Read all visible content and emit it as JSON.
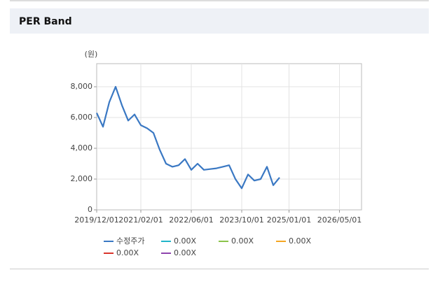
{
  "header": {
    "title": "PER Band"
  },
  "chart_data": {
    "type": "line",
    "y_unit_label": "(원)",
    "x": [
      "2019/12/01",
      "2020/02/01",
      "2020/04/01",
      "2020/06/01",
      "2020/08/01",
      "2020/10/01",
      "2020/12/01",
      "2021/02/01",
      "2021/04/01",
      "2021/06/01",
      "2021/08/01",
      "2021/10/01",
      "2021/12/01",
      "2022/02/01",
      "2022/04/01",
      "2022/06/01",
      "2022/08/01",
      "2022/10/01",
      "2022/12/01",
      "2023/02/01",
      "2023/04/01",
      "2023/06/01",
      "2023/08/01",
      "2023/10/01",
      "2023/12/01",
      "2024/02/01",
      "2024/04/01",
      "2024/06/01",
      "2024/08/01",
      "2024/10/01"
    ],
    "series": [
      {
        "name": "수정주가",
        "color": "#3a78c3",
        "values": [
          6300,
          5400,
          7000,
          8000,
          6800,
          5800,
          6200,
          5500,
          5300,
          5000,
          3900,
          3000,
          2800,
          2900,
          3300,
          2600,
          3000,
          2600,
          2650,
          2700,
          2800,
          2900,
          2000,
          1400,
          2300,
          1900,
          2000,
          2800,
          1600,
          2100
        ]
      },
      {
        "name": "0.00X",
        "color": "#21b5c9",
        "values": [
          null,
          null,
          null,
          null,
          null,
          null,
          null,
          null,
          null,
          null,
          null,
          null,
          null,
          null,
          null,
          null,
          null,
          null,
          null,
          null,
          null,
          null,
          null,
          null,
          null,
          null,
          null,
          null,
          null,
          null
        ]
      },
      {
        "name": "0.00X",
        "color": "#8bc34a",
        "values": [
          null,
          null,
          null,
          null,
          null,
          null,
          null,
          null,
          null,
          null,
          null,
          null,
          null,
          null,
          null,
          null,
          null,
          null,
          null,
          null,
          null,
          null,
          null,
          null,
          null,
          null,
          null,
          null,
          null,
          null
        ]
      },
      {
        "name": "0.00X",
        "color": "#f5a623",
        "values": [
          null,
          null,
          null,
          null,
          null,
          null,
          null,
          null,
          null,
          null,
          null,
          null,
          null,
          null,
          null,
          null,
          null,
          null,
          null,
          null,
          null,
          null,
          null,
          null,
          null,
          null,
          null,
          null,
          null,
          null
        ]
      },
      {
        "name": "0.00X",
        "color": "#d9342b",
        "values": [
          null,
          null,
          null,
          null,
          null,
          null,
          null,
          null,
          null,
          null,
          null,
          null,
          null,
          null,
          null,
          null,
          null,
          null,
          null,
          null,
          null,
          null,
          null,
          null,
          null,
          null,
          null,
          null,
          null,
          null
        ]
      },
      {
        "name": "0.00X",
        "color": "#8e44ad",
        "values": [
          null,
          null,
          null,
          null,
          null,
          null,
          null,
          null,
          null,
          null,
          null,
          null,
          null,
          null,
          null,
          null,
          null,
          null,
          null,
          null,
          null,
          null,
          null,
          null,
          null,
          null,
          null,
          null,
          null,
          null
        ]
      }
    ],
    "xlim": [
      "2019/12/01",
      "2026/12/01"
    ],
    "xticks": [
      "2019/12/01",
      "2021/02/01",
      "2022/06/01",
      "2023/10/01",
      "2025/01/01",
      "2026/05/01"
    ],
    "ylim": [
      0,
      9500
    ],
    "yticks": [
      0,
      {
        "value": 2000,
        "label": "2,000"
      },
      {
        "value": 4000,
        "label": "4,000"
      },
      {
        "value": 6000,
        "label": "6,000"
      },
      {
        "value": 8000,
        "label": "8,000"
      }
    ],
    "grid": true
  }
}
